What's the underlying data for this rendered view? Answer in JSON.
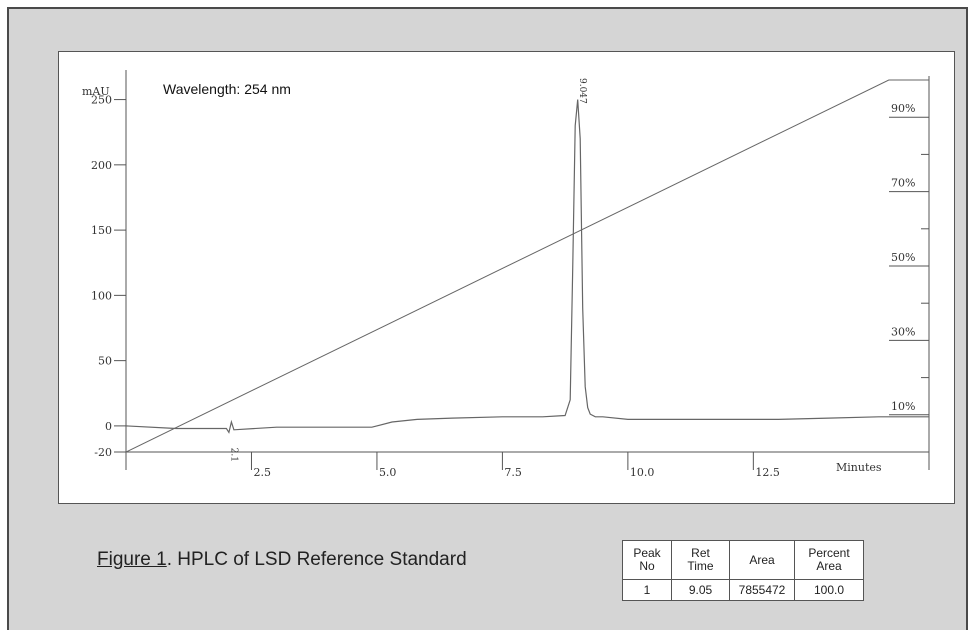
{
  "chart_data": {
    "type": "line",
    "annotation": "Wavelength: 254 nm",
    "ylabel": "mAU",
    "xlabel": "Minutes",
    "xlim": [
      0,
      16
    ],
    "ylim": [
      -20,
      265
    ],
    "y_ticks": [
      -20,
      0,
      50,
      100,
      150,
      200,
      250
    ],
    "y_tick_labels": [
      "-20",
      "0",
      "50",
      "100",
      "150",
      "200",
      "250"
    ],
    "x_ticks": [
      2.5,
      5.0,
      7.5,
      10.0,
      12.5
    ],
    "x_tick_labels": [
      "2.5",
      "5.0",
      "7.5",
      "10.0",
      "12.5"
    ],
    "y2_ticks_percent": [
      10,
      30,
      50,
      70,
      90
    ],
    "y2_tick_labels": [
      "10%",
      "30%",
      "50%",
      "70%",
      "90%"
    ],
    "grid": false,
    "series": [
      {
        "kind": "chromatogram",
        "x": [
          0.0,
          1.0,
          2.0,
          2.05,
          2.1,
          2.15,
          3.0,
          4.0,
          4.9,
          5.3,
          5.8,
          6.5,
          7.5,
          8.3,
          8.75,
          8.85,
          8.9,
          8.95,
          9.0,
          9.05,
          9.1,
          9.15,
          9.2,
          9.25,
          9.35,
          9.5,
          10.0,
          11.0,
          12.0,
          13.0,
          14.0,
          15.0,
          16.0
        ],
        "y": [
          0,
          -2,
          -2,
          -5,
          3,
          -3,
          -1,
          -1,
          -1,
          3,
          5,
          6,
          7,
          7,
          8,
          20,
          120,
          230,
          250,
          220,
          90,
          30,
          14,
          9,
          7,
          7,
          5,
          5,
          5,
          5,
          6,
          7,
          7
        ]
      },
      {
        "kind": "gradient_percent",
        "x": [
          0.0,
          15.2,
          16.0
        ],
        "y": [
          0,
          100,
          100
        ]
      }
    ],
    "peak_labels": [
      {
        "text": "9.047",
        "x": 9.05
      },
      {
        "text": "2.1",
        "x": 2.1
      }
    ]
  },
  "caption": {
    "figure_label": "Figure 1",
    "text": ". HPLC of LSD Reference Standard"
  },
  "results_table": {
    "headers": [
      {
        "line1": "Peak",
        "line2": "No"
      },
      {
        "line1": "Ret",
        "line2": "Time"
      },
      {
        "line1": "Area",
        "line2": ""
      },
      {
        "line1": "Percent",
        "line2": "Area"
      }
    ],
    "row": [
      "1",
      "9.05",
      "7855472",
      "100.0"
    ]
  }
}
